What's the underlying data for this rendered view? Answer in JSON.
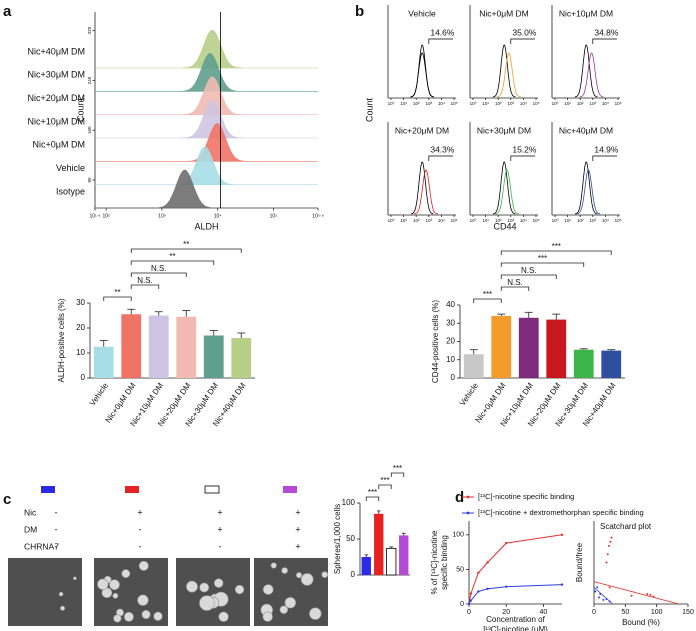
{
  "panel_labels": [
    "a",
    "b",
    "c",
    "d"
  ],
  "chart_data": [
    {
      "type": "ridge",
      "y_label": "Count",
      "x_label": "ALDH",
      "log_x": true,
      "xlim": [
        63.1,
        631000
      ],
      "xticks": [
        {
          "value": 63.1,
          "label": "10¹·⁸"
        },
        {
          "value": 100,
          "label": "10²"
        },
        {
          "value": 1000,
          "label": "10³"
        },
        {
          "value": 10000,
          "label": "10⁴"
        },
        {
          "value": 100000,
          "label": "10⁵"
        },
        {
          "value": 631000,
          "label": "10⁵·⁸"
        }
      ],
      "ylim": [
        35,
        350
      ],
      "yticks": [
        80,
        160,
        240,
        320
      ],
      "gate": 11200,
      "series": [
        {
          "name": "Nic+40μM DM",
          "color": "#b8cf88",
          "peak": 8000
        },
        {
          "name": "Nic+30μM DM",
          "color": "#5f9f8d",
          "peak": 7300
        },
        {
          "name": "Nic+20μM DM",
          "color": "#f0bab3",
          "peak": 8000
        },
        {
          "name": "Nic+10μM DM",
          "color": "#cec4e1",
          "peak": 8000
        },
        {
          "name": "Nic+0μM DM",
          "color": "#ef7466",
          "peak": 9800
        },
        {
          "name": "Vehicle",
          "color": "#a7dde6",
          "peak": 5900
        },
        {
          "name": "Isotype",
          "color": "#6e6e6e",
          "peak": 2570
        }
      ]
    },
    {
      "type": "bar",
      "y_label": "ALDH-positive cells (%)",
      "categories": [
        "Vehicle",
        "Nic+0μM DM",
        "Nic+10μM DM",
        "Nic+20μM DM",
        "Nic+30μM DM",
        "Nic+40μM DM"
      ],
      "values": [
        12.5,
        25.5,
        25,
        24.5,
        17,
        16
      ],
      "errors": [
        2.5,
        2,
        1.5,
        2.5,
        2,
        2
      ],
      "colors": [
        "#a7dde6",
        "#ef7466",
        "#cec4e1",
        "#f0bab3",
        "#5f9f8d",
        "#b8cf88"
      ],
      "ylim": [
        0,
        30
      ],
      "yticks": [
        0,
        10,
        20,
        30
      ],
      "significance": [
        {
          "between": [
            0,
            1
          ],
          "label": "**"
        },
        {
          "between": [
            1,
            2
          ],
          "label": "N.S."
        },
        {
          "between": [
            1,
            3
          ],
          "label": "N.S."
        },
        {
          "between": [
            1,
            4
          ],
          "label": "**"
        },
        {
          "between": [
            1,
            5
          ],
          "label": "**"
        }
      ]
    },
    {
      "type": "flow-grid",
      "y_label": "Count",
      "x_label": "CD44",
      "log_x": true,
      "xlim": [
        1,
        100000
      ],
      "xticks": [
        {
          "value": 1,
          "label": "10⁰"
        },
        {
          "value": 10,
          "label": "10¹"
        },
        {
          "value": 100,
          "label": "10²"
        },
        {
          "value": 1000,
          "label": "10³"
        },
        {
          "value": 10000,
          "label": "10⁴"
        },
        {
          "value": 100000,
          "label": "10⁵"
        }
      ],
      "control_color": "#000000",
      "control_peak": 300,
      "gate": 1000,
      "categories": [
        "Vehicle",
        "Nic+0μM DM",
        "Nic+10μM DM",
        "Nic+20μM DM",
        "Nic+30μM DM",
        "Nic+40μM DM"
      ],
      "colors": [
        "#000000",
        "#f39c2b",
        "#a0309e",
        "#e02020",
        "#3db54a",
        "#2e4fa0"
      ],
      "peaks": [
        300,
        700,
        800,
        600,
        500,
        450
      ],
      "values": [
        14.6,
        35.0,
        34.8,
        34.3,
        15.2,
        14.9
      ],
      "value_labels": [
        "14.6%",
        "35.0%",
        "34.8%",
        "34.3%",
        "15.2%",
        "14.9%"
      ]
    },
    {
      "type": "bar",
      "y_label": "CD44-positive cells (%)",
      "categories": [
        "Vehicle",
        "Nic+0μM DM",
        "Nic+10μM DM",
        "Nic+20μM DM",
        "Nic+30μM DM",
        "Nic+40μM DM"
      ],
      "values": [
        13,
        34,
        33,
        32,
        15.5,
        15
      ],
      "errors": [
        2.5,
        1,
        3,
        3,
        0.5,
        0.5
      ],
      "colors": [
        "#c8c8c8",
        "#f39c2b",
        "#7d2b7b",
        "#c8171e",
        "#3db54a",
        "#2e4fa0"
      ],
      "ylim": [
        0,
        40
      ],
      "yticks": [
        0,
        10,
        20,
        30,
        40
      ],
      "significance": [
        {
          "between": [
            0,
            1
          ],
          "label": "***"
        },
        {
          "between": [
            1,
            2
          ],
          "label": "N.S."
        },
        {
          "between": [
            1,
            3
          ],
          "label": "N.S."
        },
        {
          "between": [
            1,
            4
          ],
          "label": "***"
        },
        {
          "between": [
            1,
            5
          ],
          "label": "***"
        }
      ]
    },
    {
      "type": "bar",
      "y_label": "Spheres/1,000 cells",
      "values": [
        25,
        85,
        37,
        55
      ],
      "errors": [
        3,
        4,
        2,
        3
      ],
      "colors": [
        "#2b2be6",
        "#e62222",
        "#ffffff",
        "#b44ad6"
      ],
      "ylim": [
        0,
        100
      ],
      "yticks": [
        0,
        50,
        100
      ],
      "significance": [
        {
          "between": [
            0,
            1
          ],
          "label": "***"
        },
        {
          "between": [
            1,
            2
          ],
          "label": "***"
        },
        {
          "between": [
            2,
            3
          ],
          "label": "***"
        }
      ]
    },
    {
      "type": "line",
      "y_label": [
        "% of [¹³C]-nicotine",
        "specific binding"
      ],
      "x_label": [
        "Concentration of",
        "[¹³C]-nicotine (μM)"
      ],
      "xlim": [
        0,
        50
      ],
      "xticks": [
        0,
        20,
        40
      ],
      "ylim": [
        0,
        120
      ],
      "yticks": [
        0,
        50,
        100
      ],
      "series": [
        {
          "name": "[¹³C]-nicotine specific binding",
          "color": "#e53030",
          "x": [
            0,
            1,
            5,
            10,
            20,
            50
          ],
          "values": [
            0,
            15,
            45,
            60,
            88,
            100
          ]
        },
        {
          "name": "[¹³C]-nicotine + dextromethorphan specific binding",
          "color": "#2e3fe0",
          "x": [
            0,
            1,
            5,
            10,
            20,
            50
          ],
          "values": [
            0,
            5,
            18,
            22,
            25,
            28
          ]
        }
      ]
    },
    {
      "type": "scatter",
      "title": "Scatchard plot",
      "y_label": "Bound/free",
      "x_label": "Bound (%)",
      "xlim": [
        0,
        150
      ],
      "xticks": [
        0,
        50,
        100,
        150
      ],
      "ylim": [
        0,
        10
      ],
      "points": [
        {
          "color": "#e53030",
          "x": [
            20,
            22,
            24,
            26,
            28,
            25,
            60,
            85,
            90,
            95
          ],
          "values": [
            5,
            6,
            7,
            7.5,
            8,
            2,
            1,
            1.2,
            1.1,
            0.9
          ]
        },
        {
          "color": "#2e3fe0",
          "x": [
            2,
            5,
            8,
            10,
            15,
            20,
            25
          ],
          "values": [
            1.5,
            2,
            0.8,
            1.2,
            0.5,
            0.6,
            0.3
          ]
        }
      ],
      "fits": [
        {
          "color": "#e53030",
          "x": [
            0,
            135
          ],
          "values": [
            2.7,
            0
          ]
        },
        {
          "color": "#2e3fe0",
          "x": [
            0,
            30
          ],
          "values": [
            2,
            0
          ]
        }
      ]
    }
  ],
  "conditions": {
    "rows": [
      {
        "label": "Nic",
        "signs": [
          "-",
          "+",
          "+",
          "+"
        ]
      },
      {
        "label": "DM",
        "signs": [
          "-",
          "-",
          "+",
          "+"
        ]
      },
      {
        "label": "CHRNA7",
        "signs": [
          "-",
          "-",
          "-",
          "+"
        ]
      }
    ],
    "swatches": [
      "#2b2be6",
      "#e62222",
      "#ffffff",
      "#b44ad6"
    ]
  }
}
